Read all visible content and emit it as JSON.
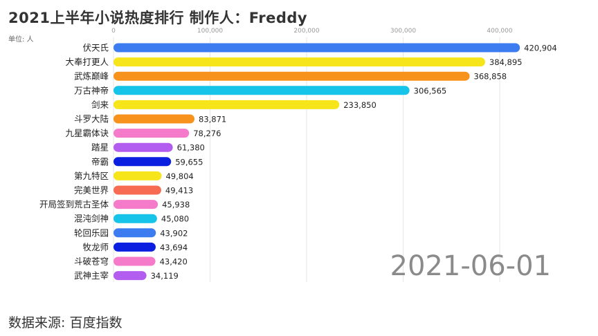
{
  "title": "2021上半年小说热度排行  制作人：Freddy",
  "unit_label": "单位: 人",
  "date_label": "2021-06-01",
  "source": "数据来源: 百度指数",
  "chart_data": {
    "type": "bar",
    "orientation": "horizontal",
    "xlim": [
      0,
      440000
    ],
    "x_ticks": [
      0,
      100000,
      200000,
      300000,
      400000
    ],
    "x_tick_labels": [
      "0",
      "100,000",
      "200,000",
      "300,000",
      "400,000"
    ],
    "grid": true,
    "categories": [
      "伏天氏",
      "大奉打更人",
      "武炼巅峰",
      "万古神帝",
      "剑来",
      "斗罗大陆",
      "九星霸体诀",
      "踏星",
      "帝霸",
      "第九特区",
      "完美世界",
      "开局签到荒古圣体",
      "混沌剑神",
      "轮回乐园",
      "牧龙师",
      "斗破苍穹",
      "武神主宰"
    ],
    "values": [
      420904,
      384895,
      368858,
      306565,
      233850,
      83871,
      78276,
      61380,
      59655,
      49804,
      49413,
      45938,
      45080,
      43902,
      43694,
      43420,
      34119
    ],
    "value_labels": [
      "420,904",
      "384,895",
      "368,858",
      "306,565",
      "233,850",
      "83,871",
      "78,276",
      "61,380",
      "59,655",
      "49,804",
      "49,413",
      "45,938",
      "45,080",
      "43,902",
      "43,694",
      "43,420",
      "34,119"
    ],
    "colors": [
      "#3d7cf0",
      "#f7e51c",
      "#f7931c",
      "#16c4ea",
      "#f7e51c",
      "#f7931c",
      "#f57ac9",
      "#b35cf0",
      "#0a1fe0",
      "#f7e51c",
      "#f76b52",
      "#f57ac9",
      "#16c4ea",
      "#3d7cf0",
      "#0a1fe0",
      "#f57ac9",
      "#b35cf0"
    ]
  }
}
